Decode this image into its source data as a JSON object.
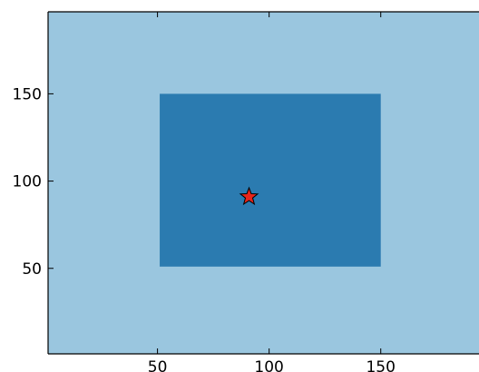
{
  "chart_data": {
    "type": "scatter",
    "title": "",
    "xlabel": "",
    "ylabel": "",
    "xlim": [
      1,
      194
    ],
    "ylim": [
      1,
      197
    ],
    "grid": false,
    "x_ticks": [
      50,
      100,
      150
    ],
    "y_ticks": [
      50,
      100,
      150
    ],
    "background_region": {
      "x": [
        1,
        194
      ],
      "y": [
        1,
        197
      ],
      "color": "#9ac6df"
    },
    "regions": [
      {
        "x": [
          51,
          150
        ],
        "y": [
          51,
          150
        ],
        "color": "#2b7bb0"
      }
    ],
    "points": [
      {
        "x": 91,
        "y": 91,
        "marker": "star",
        "color": "#e8251a"
      }
    ]
  }
}
